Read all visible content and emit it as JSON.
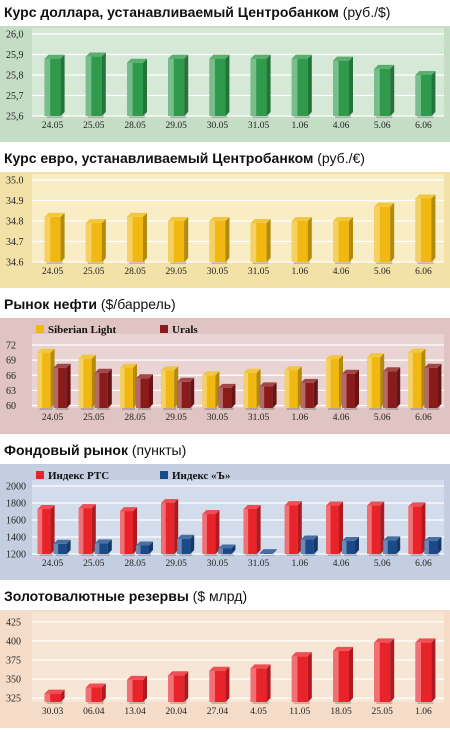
{
  "chart_data": [
    {
      "type": "bar",
      "title": "Курс доллара, устанавливаемый Центробанком",
      "unit": "(руб./$)",
      "categories": [
        "24.05",
        "25.05",
        "28.05",
        "29.05",
        "30.05",
        "31.05",
        "1.06",
        "4.06",
        "5.06",
        "6.06"
      ],
      "yticks": [
        "26,0",
        "25,9",
        "25,8",
        "25,7",
        "25,6"
      ],
      "ylim": [
        25.6,
        26.0
      ],
      "series": [
        {
          "values": [
            25.88,
            25.89,
            25.86,
            25.88,
            25.88,
            25.88,
            25.88,
            25.87,
            25.83,
            25.8
          ]
        }
      ],
      "colors": {
        "band": "#c5ddc5",
        "plot": "#d6e8d6",
        "bars": [
          "#2f9a4c"
        ]
      }
    },
    {
      "type": "bar",
      "title": "Курс евро, устанавливаемый Центробанком",
      "unit": "(руб./€)",
      "categories": [
        "24.05",
        "25.05",
        "28.05",
        "29.05",
        "30.05",
        "31.05",
        "1.06",
        "4.06",
        "5.06",
        "6.06"
      ],
      "yticks": [
        "35.0",
        "34.9",
        "34.8",
        "34.7",
        "34.6"
      ],
      "ylim": [
        34.6,
        35.0
      ],
      "series": [
        {
          "values": [
            34.82,
            34.79,
            34.82,
            34.8,
            34.8,
            34.79,
            34.8,
            34.8,
            34.87,
            34.91
          ]
        }
      ],
      "colors": {
        "band": "#f3e2a8",
        "plot": "#f8edc4",
        "bars": [
          "#f0b810"
        ]
      }
    },
    {
      "type": "bar",
      "title": "Рынок нефти",
      "unit": "($/баррель)",
      "categories": [
        "24.05",
        "25.05",
        "28.05",
        "29.05",
        "30.05",
        "31.05",
        "1.06",
        "4.06",
        "5.06",
        "6.06"
      ],
      "yticks": [
        "72",
        "69",
        "66",
        "63",
        "60"
      ],
      "ylim": [
        59.5,
        73
      ],
      "legend": [
        "Siberian Light",
        "Urals"
      ],
      "series": [
        {
          "name": "Siberian Light",
          "values": [
            70.5,
            69.3,
            67.5,
            67.0,
            66.0,
            66.5,
            67.0,
            69.2,
            69.6,
            70.5
          ]
        },
        {
          "name": "Urals",
          "values": [
            67.5,
            66.5,
            65.4,
            64.7,
            63.5,
            63.8,
            64.5,
            66.3,
            66.8,
            67.5
          ]
        }
      ],
      "colors": {
        "band": "#e0c4c4",
        "plot": "#e9d3d3",
        "bars": [
          "#f0b810",
          "#8b1a1a"
        ]
      }
    },
    {
      "type": "bar",
      "title": "Фондовый рынок",
      "unit": "(пункты)",
      "categories": [
        "24.05",
        "25.05",
        "28.05",
        "29.05",
        "30.05",
        "31.05",
        "1.06",
        "4.06",
        "5.06",
        "6.06"
      ],
      "yticks": [
        "2000",
        "1800",
        "1600",
        "1400",
        "1200"
      ],
      "ylim": [
        1200,
        2000
      ],
      "legend": [
        "Индекс РТС",
        "Индекс «Ъ»"
      ],
      "series": [
        {
          "name": "Индекс РТС",
          "values": [
            1730,
            1740,
            1705,
            1800,
            1670,
            1730,
            1775,
            1770,
            1770,
            1760
          ]
        },
        {
          "name": "Индекс «Ъ»",
          "values": [
            1320,
            1325,
            1300,
            1380,
            1265,
            1210,
            1370,
            1355,
            1360,
            1355
          ]
        }
      ],
      "colors": {
        "band": "#c3cfe0",
        "plot": "#d2dceb",
        "bars": [
          "#e8232a",
          "#1b4a8a"
        ]
      }
    },
    {
      "type": "bar",
      "title": "Золотовалютные резервы",
      "unit": "($ млрд)",
      "categories": [
        "30.03",
        "06.04",
        "13.04",
        "20.04",
        "27.04",
        "4.05",
        "11.05",
        "18.05",
        "25.05",
        "1.06"
      ],
      "yticks": [
        "425",
        "400",
        "375",
        "350",
        "325"
      ],
      "ylim": [
        320,
        430
      ],
      "series": [
        {
          "values": [
            331,
            339,
            349,
            355,
            361,
            364,
            380,
            387,
            398,
            398
          ]
        }
      ],
      "colors": {
        "band": "#f4dcc8",
        "plot": "#f7e6d6",
        "bars": [
          "#e8232a"
        ]
      }
    }
  ]
}
